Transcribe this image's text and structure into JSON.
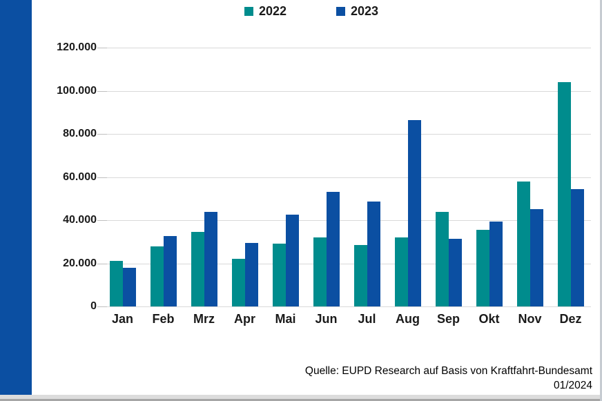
{
  "colors": {
    "series_2022": "#008C8D",
    "series_2023": "#0B4FA2",
    "sidebar": "#0B4FA2",
    "gridline": "#d9d9d9"
  },
  "chart_data": {
    "type": "bar",
    "title": "",
    "xlabel": "",
    "ylabel": "",
    "categories": [
      "Jan",
      "Feb",
      "Mrz",
      "Apr",
      "Mai",
      "Jun",
      "Jul",
      "Aug",
      "Sep",
      "Okt",
      "Nov",
      "Dez"
    ],
    "series": [
      {
        "name": "2022",
        "color": "#008C8D",
        "values": [
          21000,
          28000,
          34500,
          22000,
          29000,
          32000,
          28500,
          32000,
          44000,
          35500,
          58000,
          104000
        ]
      },
      {
        "name": "2023",
        "color": "#0B4FA2",
        "values": [
          18000,
          32500,
          44000,
          29500,
          42500,
          53000,
          48500,
          86500,
          31500,
          39500,
          45000,
          54500
        ]
      }
    ],
    "ylim": [
      0,
      120000
    ],
    "y_ticks": [
      0,
      20000,
      40000,
      60000,
      80000,
      100000,
      120000
    ],
    "y_tick_labels": [
      "0",
      "20.000",
      "40.000",
      "60.000",
      "80.000",
      "100.000",
      "120.000"
    ],
    "grid": true,
    "legend_position": "top-center"
  },
  "source": {
    "line1": "Quelle: EUPD Research auf Basis von Kraftfahrt-Bundesamt",
    "line2": "01/2024"
  }
}
